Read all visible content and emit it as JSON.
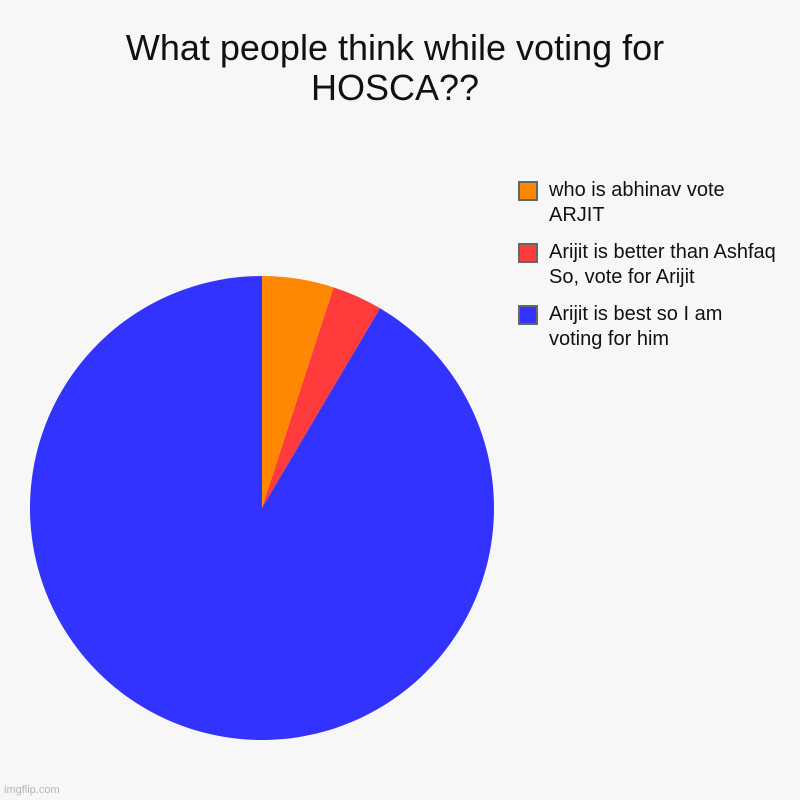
{
  "chart_data": {
    "type": "pie",
    "title": "What people think while voting for\nHOSCA??",
    "slices": [
      {
        "label": "who is abhinav vote\nARJIT",
        "value": 5,
        "color": "#ff8800"
      },
      {
        "label": "Arijit is better than Ashfaq\nSo, vote for Arijit",
        "value": 3.5,
        "color": "#ff3b3b"
      },
      {
        "label": "Arijit is best so I am\nvoting for him",
        "value": 91.5,
        "color": "#3333ff"
      }
    ],
    "legend_position": "top-right",
    "start_angle": "12 o'clock",
    "direction": "clockwise"
  },
  "watermark": "imgflip.com"
}
